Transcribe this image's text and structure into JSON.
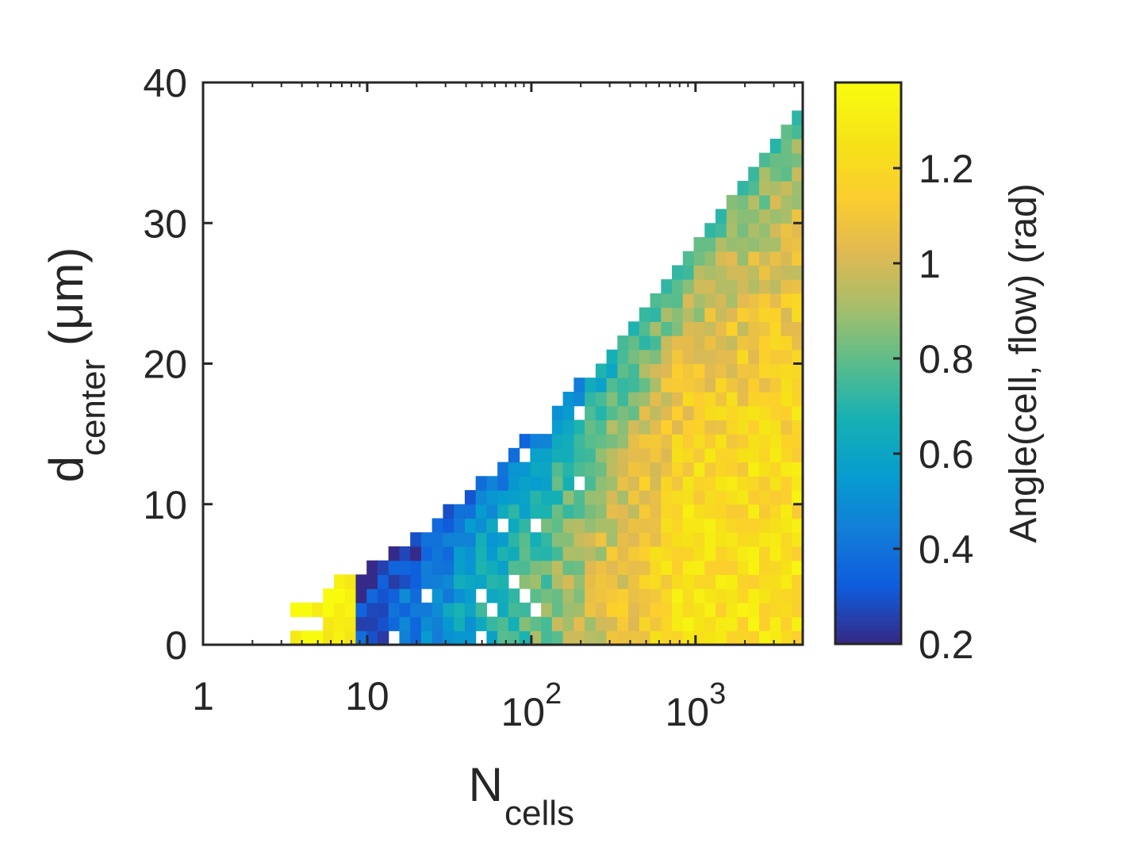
{
  "chart_data": {
    "type": "heatmap",
    "x_axis": {
      "label_main": "N",
      "label_sub": "cells",
      "scale": "log",
      "range": [
        1,
        4500
      ],
      "ticks": [
        {
          "value": 1,
          "base": "1",
          "exp": ""
        },
        {
          "value": 10,
          "base": "10",
          "exp": ""
        },
        {
          "value": 100,
          "base": "10",
          "exp": "2"
        },
        {
          "value": 1000,
          "base": "10",
          "exp": "3"
        }
      ]
    },
    "y_axis": {
      "label_main": "d",
      "label_sub": "center",
      "label_unit": " (μm)",
      "range": [
        0,
        40
      ],
      "ticks": [
        {
          "value": 0,
          "label": "0"
        },
        {
          "value": 10,
          "label": "10"
        },
        {
          "value": 20,
          "label": "20"
        },
        {
          "value": 30,
          "label": "30"
        },
        {
          "value": 40,
          "label": "40"
        }
      ]
    },
    "colorbar": {
      "label": "Angle(cell, flow) (rad)",
      "range": [
        0.2,
        1.38
      ],
      "colormap": "parula",
      "ticks": [
        {
          "value": 0.2,
          "label": "0.2"
        },
        {
          "value": 0.4,
          "label": "0.4"
        },
        {
          "value": 0.6,
          "label": "0.6"
        },
        {
          "value": 0.8,
          "label": "0.8"
        },
        {
          "value": 1.0,
          "label": "1"
        },
        {
          "value": 1.2,
          "label": "1.2"
        }
      ]
    },
    "bins": {
      "x_count": 55,
      "y_count": 40
    },
    "colors": {
      "axis": "#262626",
      "background": "#ffffff"
    },
    "description": "Mean angle between cell orientation and flow binned by colony size N_cells (log scale) and distance from center d_center. Data occupy a triangular region: maximum d_center grows with N_cells. Angles are low (~0.3-0.6 rad) at small N and small d, and high (~1.2-1.38 rad) for large N (>300) near the center, with values decreasing toward the outer edge."
  }
}
